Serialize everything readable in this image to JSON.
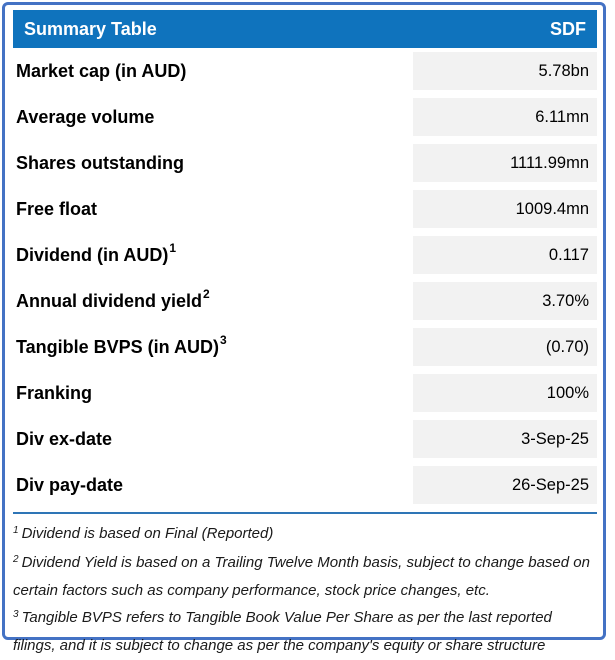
{
  "colors": {
    "header_bg": "#0F73BD",
    "header_text": "#FFFFFF",
    "value_cell_bg": "#F2F2F2",
    "outer_border": "#4472C4",
    "separator_line": "#2E75B6",
    "label_text": "#000000",
    "footnote_text": "#1A1A1A"
  },
  "header": {
    "title": "Summary Table",
    "ticker": "SDF"
  },
  "rows": [
    {
      "label": "Market cap (in AUD)",
      "sup": "",
      "value": "5.78bn"
    },
    {
      "label": "Average volume",
      "sup": "",
      "value": "6.11mn"
    },
    {
      "label": "Shares outstanding",
      "sup": "",
      "value": "1111.99mn"
    },
    {
      "label": "Free float",
      "sup": "",
      "value": "1009.4mn"
    },
    {
      "label": "Dividend (in AUD)",
      "sup": "1",
      "value": "0.117"
    },
    {
      "label": "Annual dividend yield",
      "sup": "2",
      "value": "3.70%"
    },
    {
      "label": "Tangible BVPS (in AUD)",
      "sup": "3",
      "value": "(0.70)"
    },
    {
      "label": "Franking",
      "sup": "",
      "value": "100%"
    },
    {
      "label": "Div ex-date",
      "sup": "",
      "value": "3-Sep-25"
    },
    {
      "label": "Div pay-date",
      "sup": "",
      "value": "26-Sep-25"
    }
  ],
  "footnotes": [
    {
      "sup": "1",
      "text": "Dividend is based on Final (Reported)"
    },
    {
      "sup": "2",
      "text": "Dividend Yield is based on a Trailing Twelve Month basis, subject to change based on certain factors such as company performance, stock price changes, etc."
    },
    {
      "sup": "3",
      "text": "Tangible BVPS refers to Tangible Book Value Per Share as per the last reported filings, and it is subject to change as per the company's equity or share structure"
    }
  ]
}
